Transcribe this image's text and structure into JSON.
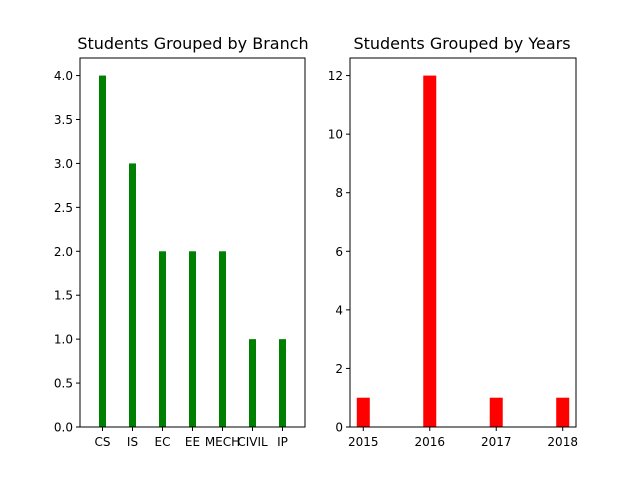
{
  "chart_data": [
    {
      "type": "bar",
      "title": "Students Grouped by Branch",
      "xlabel": "",
      "ylabel": "",
      "categories": [
        "CS",
        "IS",
        "EC",
        "EE",
        "MECH",
        "CIVIL",
        "IP"
      ],
      "values": [
        4,
        3,
        2,
        2,
        2,
        1,
        1
      ],
      "ylim": [
        0,
        4.2
      ],
      "yticks": [
        "0.0",
        "0.5",
        "1.0",
        "1.5",
        "2.0",
        "2.5",
        "3.0",
        "3.5",
        "4.0"
      ],
      "color": "#008000",
      "grid": false
    },
    {
      "type": "bar",
      "title": "Students Grouped by Years",
      "xlabel": "",
      "ylabel": "",
      "categories": [
        "2015",
        "2016",
        "2017",
        "2018"
      ],
      "x": [
        2015,
        2016,
        2017,
        2018
      ],
      "xlim": [
        2014.8,
        2018.2
      ],
      "values": [
        1,
        12,
        1,
        1
      ],
      "ylim": [
        0,
        12.6
      ],
      "yticks": [
        "0",
        "2",
        "4",
        "6",
        "8",
        "10",
        "12"
      ],
      "color": "#ff0000",
      "grid": false
    }
  ]
}
